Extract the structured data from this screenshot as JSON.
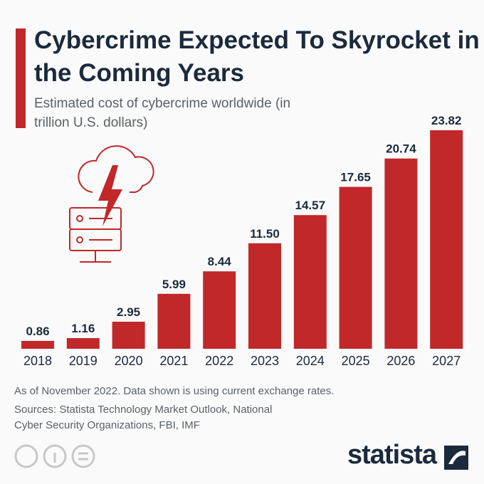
{
  "chart_data": {
    "type": "bar",
    "title": "Cybercrime Expected To Skyrocket in the Coming Years",
    "subtitle": "Estimated cost of cybercrime worldwide (in trillion U.S. dollars)",
    "categories": [
      "2018",
      "2019",
      "2020",
      "2021",
      "2022",
      "2023",
      "2024",
      "2025",
      "2026",
      "2027"
    ],
    "values": [
      0.86,
      1.16,
      2.95,
      5.99,
      8.44,
      11.5,
      14.57,
      17.65,
      20.74,
      23.82
    ],
    "value_labels": [
      "0.86",
      "1.16",
      "2.95",
      "5.99",
      "8.44",
      "11.50",
      "14.57",
      "17.65",
      "20.74",
      "23.82"
    ],
    "color": "#c0282a",
    "note": "As of November 2022. Data shown is using current exchange rates.",
    "source": "Sources: Statista Technology Market Outlook, National Cyber Security Organizations, FBI, IMF",
    "brand": "statista"
  }
}
